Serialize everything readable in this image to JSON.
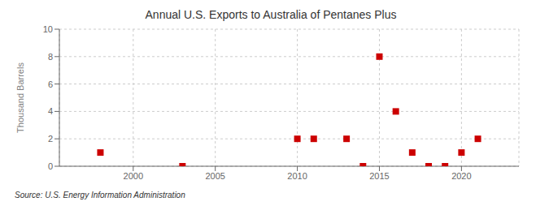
{
  "chart_data": {
    "type": "scatter",
    "title": "Annual U.S. Exports to Australia of Pentanes Plus",
    "y_label": "Thousand Barrels",
    "source": "Source: U.S. Energy Information Administration",
    "x": [
      1998,
      2003,
      2010,
      2011,
      2013,
      2014,
      2015,
      2016,
      2017,
      2018,
      2019,
      2020,
      2021
    ],
    "values": [
      1,
      0,
      2,
      2,
      2,
      0,
      8,
      4,
      1,
      0,
      0,
      1,
      2
    ],
    "color": "#cc0000",
    "marker": "square",
    "xlim": [
      1995.5,
      2023.5
    ],
    "ylim": [
      0,
      10
    ],
    "xticks": [
      2000,
      2005,
      2010,
      2015,
      2020
    ],
    "yticks": [
      0,
      2,
      4,
      6,
      8,
      10
    ],
    "grid": true
  }
}
